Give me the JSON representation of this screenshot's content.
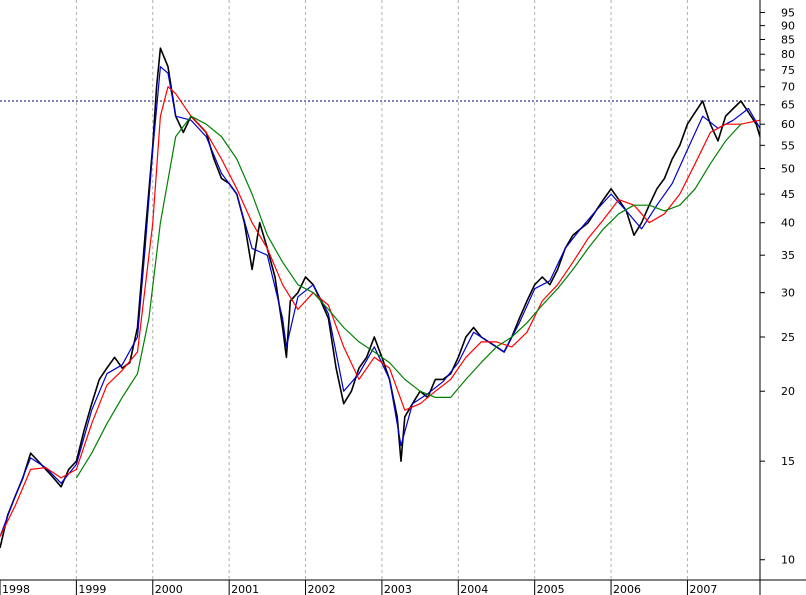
{
  "chart_data": {
    "type": "line",
    "title": "",
    "xlabel": "",
    "ylabel": "",
    "y_scale": "log",
    "ylim": [
      9.2,
      100
    ],
    "xlim": [
      1998.0,
      2007.95
    ],
    "grid": true,
    "x_ticks": [
      1998,
      1999,
      2000,
      2001,
      2002,
      2003,
      2004,
      2005,
      2006,
      2007
    ],
    "x_tick_labels": [
      "1998",
      "1999",
      "2000",
      "2001",
      "2002",
      "2003",
      "2004",
      "2005",
      "2006",
      "2007"
    ],
    "y_ticks": [
      10,
      15,
      20,
      25,
      30,
      35,
      40,
      45,
      50,
      55,
      60,
      65,
      70,
      75,
      80,
      85,
      90,
      95
    ],
    "y_tick_labels": [
      "10",
      "15",
      "20",
      "25",
      "30",
      "35",
      "40",
      "45",
      "50",
      "55",
      "60",
      "65",
      "70",
      "75",
      "80",
      "85",
      "90",
      "95"
    ],
    "reference_line": {
      "y": 66,
      "style": "dotted",
      "color": "#000080"
    },
    "series": [
      {
        "color": "#000000",
        "x": [
          1998.0,
          1998.1,
          1998.2,
          1998.3,
          1998.4,
          1998.5,
          1998.6,
          1998.7,
          1998.8,
          1998.9,
          1999.0,
          1999.1,
          1999.2,
          1999.3,
          1999.4,
          1999.5,
          1999.6,
          1999.7,
          1999.8,
          1999.9,
          2000.0,
          2000.05,
          2000.1,
          2000.2,
          2000.3,
          2000.4,
          2000.5,
          2000.6,
          2000.7,
          2000.8,
          2000.9,
          2001.0,
          2001.1,
          2001.2,
          2001.3,
          2001.4,
          2001.5,
          2001.6,
          2001.7,
          2001.75,
          2001.8,
          2001.9,
          2002.0,
          2002.1,
          2002.2,
          2002.3,
          2002.4,
          2002.5,
          2002.6,
          2002.7,
          2002.8,
          2002.9,
          2003.0,
          2003.1,
          2003.2,
          2003.25,
          2003.3,
          2003.4,
          2003.5,
          2003.6,
          2003.7,
          2003.8,
          2003.9,
          2004.0,
          2004.1,
          2004.2,
          2004.3,
          2004.4,
          2004.5,
          2004.6,
          2004.7,
          2004.8,
          2004.9,
          2005.0,
          2005.1,
          2005.2,
          2005.3,
          2005.4,
          2005.5,
          2005.6,
          2005.7,
          2005.8,
          2005.9,
          2006.0,
          2006.1,
          2006.2,
          2006.3,
          2006.4,
          2006.5,
          2006.6,
          2006.7,
          2006.8,
          2006.9,
          2007.0,
          2007.1,
          2007.2,
          2007.3,
          2007.4,
          2007.5,
          2007.6,
          2007.7,
          2007.8,
          2007.9,
          2007.95
        ],
        "values": [
          10.5,
          12,
          13,
          14,
          15.5,
          15,
          14.5,
          14,
          13.5,
          14.5,
          15,
          17,
          19,
          21,
          22,
          23,
          22,
          22.5,
          26,
          38,
          55,
          70,
          82,
          76,
          62,
          58,
          62,
          60,
          58,
          52,
          48,
          47,
          45,
          40,
          33,
          40,
          36,
          32,
          26,
          23,
          29,
          30,
          32,
          31,
          29,
          27,
          22,
          19,
          20,
          22,
          23,
          25,
          23,
          21,
          18,
          15,
          18,
          19,
          20,
          19.5,
          21,
          21,
          21.5,
          23,
          25,
          26,
          25,
          24.5,
          24,
          23.5,
          25,
          27,
          29,
          31,
          32,
          31,
          33,
          36,
          38,
          39,
          40,
          42,
          44,
          46,
          44,
          42,
          38,
          40,
          43,
          46,
          48,
          52,
          55,
          60,
          63,
          66,
          60,
          56,
          62,
          64,
          66,
          63,
          60,
          57
        ]
      },
      {
        "color": "#0000cc",
        "x": [
          1998.0,
          1998.2,
          1998.4,
          1998.6,
          1998.8,
          1999.0,
          1999.2,
          1999.4,
          1999.6,
          1999.8,
          1999.9,
          2000.0,
          2000.1,
          2000.2,
          2000.3,
          2000.5,
          2000.7,
          2000.9,
          2001.1,
          2001.3,
          2001.5,
          2001.7,
          2001.75,
          2001.9,
          2002.1,
          2002.3,
          2002.5,
          2002.7,
          2002.9,
          2003.1,
          2003.25,
          2003.4,
          2003.6,
          2003.8,
          2004.0,
          2004.2,
          2004.4,
          2004.6,
          2004.8,
          2005.0,
          2005.2,
          2005.4,
          2005.6,
          2005.8,
          2006.0,
          2006.2,
          2006.4,
          2006.6,
          2006.8,
          2007.0,
          2007.2,
          2007.4,
          2007.6,
          2007.8,
          2007.95
        ],
        "values": [
          11,
          13,
          15.2,
          14.6,
          13.7,
          14.8,
          18.5,
          21.5,
          22.3,
          25,
          36,
          54,
          76,
          74,
          62,
          61,
          57,
          49,
          45,
          36,
          35,
          27,
          24,
          29.5,
          31,
          27.5,
          20,
          21.5,
          24,
          21,
          16,
          19,
          19.8,
          20.8,
          22.5,
          25.5,
          24.5,
          23.5,
          26.5,
          30.5,
          31.5,
          36,
          39,
          42,
          45,
          42,
          39,
          43,
          47,
          54,
          62,
          59,
          61,
          64,
          59
        ]
      },
      {
        "color": "#ff0000",
        "x": [
          1998.0,
          1998.2,
          1998.4,
          1998.6,
          1998.8,
          1999.0,
          1999.2,
          1999.4,
          1999.6,
          1999.8,
          2000.0,
          2000.1,
          2000.2,
          2000.3,
          2000.5,
          2000.7,
          2000.9,
          2001.1,
          2001.3,
          2001.5,
          2001.7,
          2001.9,
          2002.1,
          2002.3,
          2002.5,
          2002.7,
          2002.9,
          2003.1,
          2003.3,
          2003.5,
          2003.7,
          2003.9,
          2004.1,
          2004.3,
          2004.5,
          2004.7,
          2004.9,
          2005.1,
          2005.3,
          2005.5,
          2005.7,
          2005.9,
          2006.1,
          2006.3,
          2006.5,
          2006.7,
          2006.9,
          2007.1,
          2007.3,
          2007.5,
          2007.7,
          2007.95
        ],
        "values": [
          11,
          12.5,
          14.5,
          14.6,
          14,
          14.5,
          17.5,
          20.5,
          21.8,
          23.5,
          40,
          62,
          70,
          68,
          62,
          58,
          52,
          46,
          40,
          36,
          31,
          28,
          30,
          28.5,
          24,
          21,
          23,
          22,
          18.5,
          19,
          20,
          21,
          23,
          24.5,
          24.5,
          24,
          25.5,
          29,
          31,
          34,
          37.5,
          40.5,
          44,
          43,
          40,
          41.5,
          45,
          51,
          58,
          60,
          60,
          61
        ]
      },
      {
        "color": "#008000",
        "x": [
          1999.0,
          1999.2,
          1999.4,
          1999.6,
          1999.8,
          1999.95,
          2000.1,
          2000.3,
          2000.5,
          2000.7,
          2000.9,
          2001.1,
          2001.3,
          2001.5,
          2001.7,
          2001.9,
          2002.1,
          2002.3,
          2002.5,
          2002.7,
          2002.9,
          2003.1,
          2003.3,
          2003.5,
          2003.7,
          2003.9,
          2004.1,
          2004.3,
          2004.5,
          2004.7,
          2004.9,
          2005.1,
          2005.3,
          2005.5,
          2005.7,
          2005.9,
          2006.1,
          2006.3,
          2006.5,
          2006.7,
          2006.9,
          2007.1,
          2007.3,
          2007.5,
          2007.7
        ],
        "values": [
          14,
          15.5,
          17.5,
          19.5,
          21.5,
          27,
          40,
          57,
          62,
          60,
          57,
          52,
          45,
          38,
          34,
          31,
          30,
          28,
          26,
          24.5,
          23.5,
          22.5,
          21,
          20,
          19.5,
          19.5,
          21,
          22.5,
          24,
          25,
          26.5,
          28.5,
          30.5,
          33,
          36,
          39,
          41.5,
          43,
          43,
          42,
          43,
          46,
          51,
          56,
          60
        ]
      }
    ]
  }
}
